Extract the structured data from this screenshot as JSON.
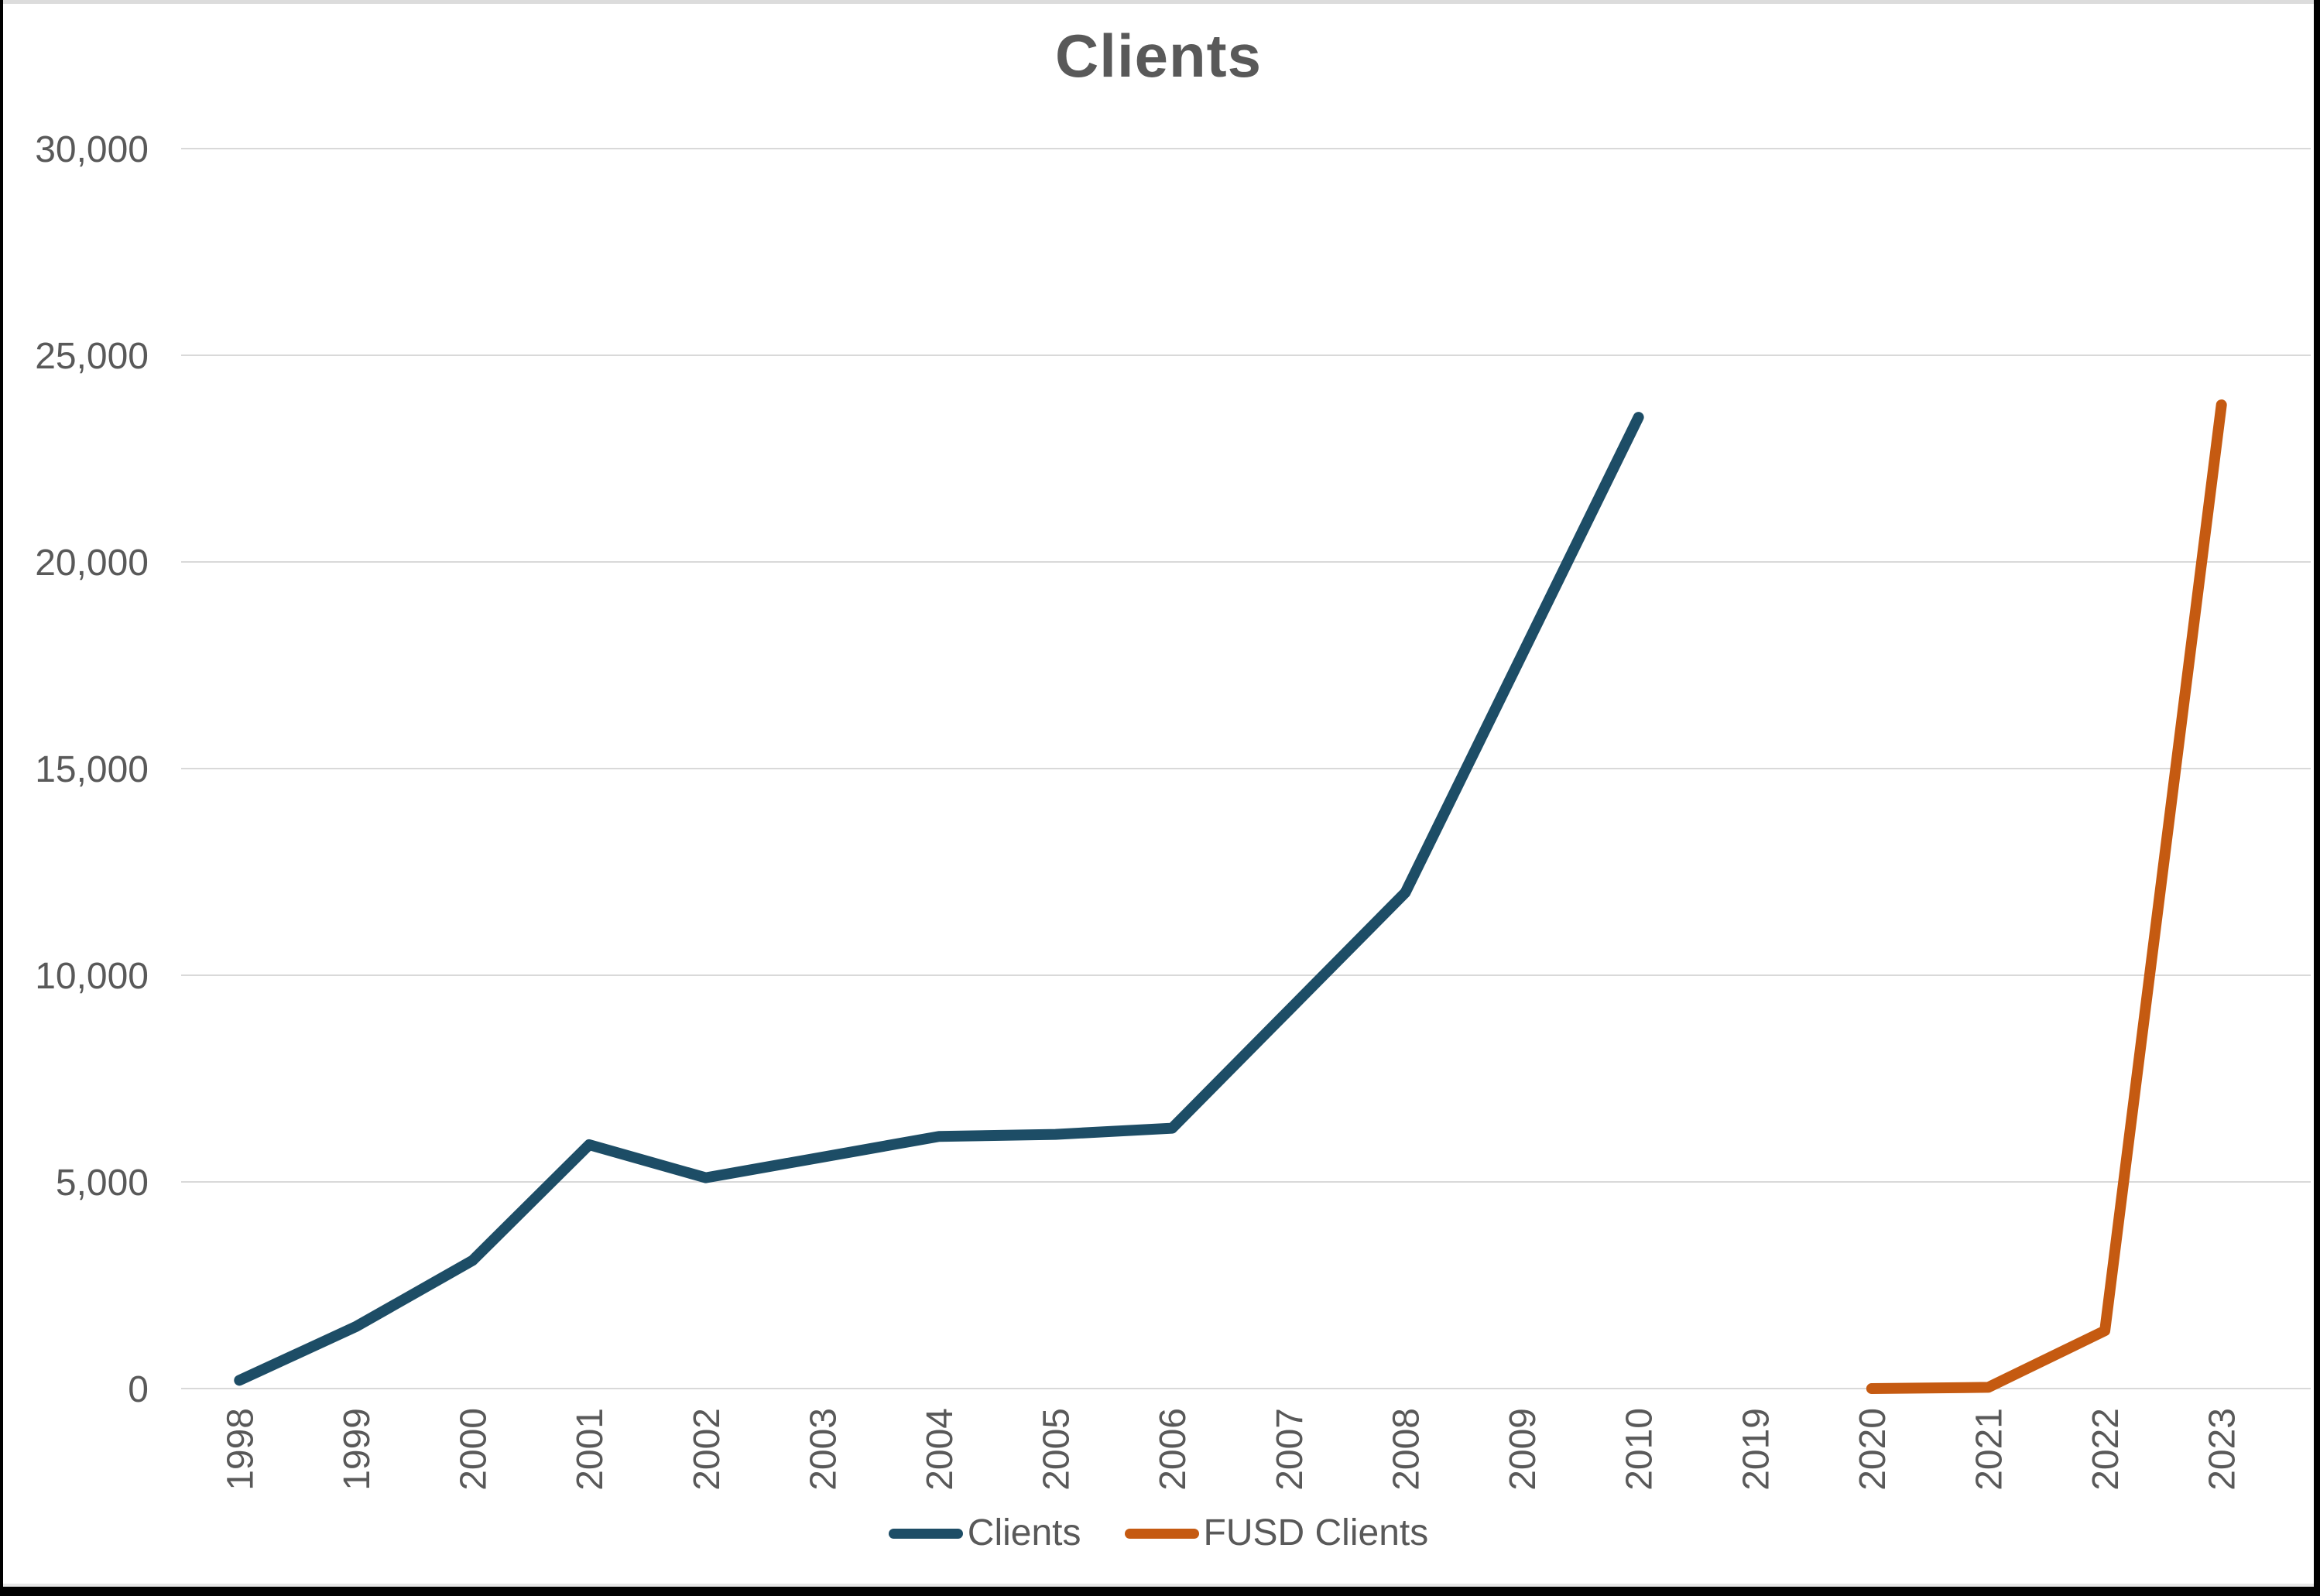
{
  "window": {
    "title": "Clients chart"
  },
  "colors": {
    "background": "#FFFFFF",
    "frame": "#000000",
    "title_text": "#595959",
    "axis_text": "#595959",
    "gridline": "#D9D9D9",
    "series_clients": "#1D4D66",
    "series_fusd": "#C55A11"
  },
  "chart_data": {
    "type": "line",
    "title": "Clients",
    "xlabel": "",
    "ylabel": "",
    "ylim": [
      0,
      30000
    ],
    "grid": true,
    "legend_position": "bottom-center",
    "categories": [
      "1998",
      "1999",
      "2000",
      "2001",
      "2002",
      "2003",
      "2004",
      "2005",
      "2006",
      "2007",
      "2008",
      "2009",
      "2010",
      "2019",
      "2020",
      "2021",
      "2022",
      "2023"
    ],
    "y_ticks": {
      "values": [
        0,
        5000,
        10000,
        15000,
        20000,
        25000,
        30000
      ],
      "labels": [
        "0",
        "5,000",
        "10,000",
        "15,000",
        "20,000",
        "25,000",
        "30,000"
      ]
    },
    "series": [
      {
        "name": "Clients",
        "color": "#1D4D66",
        "values": [
          200,
          1500,
          3100,
          5900,
          5100,
          5600,
          6100,
          6150,
          6300,
          9150,
          12000,
          17750,
          23500,
          null,
          null,
          null,
          null,
          null
        ]
      },
      {
        "name": "FUSD Clients",
        "color": "#C55A11",
        "values": [
          null,
          null,
          null,
          null,
          null,
          null,
          null,
          null,
          null,
          null,
          null,
          null,
          null,
          null,
          0,
          30,
          1400,
          23800
        ]
      }
    ]
  }
}
